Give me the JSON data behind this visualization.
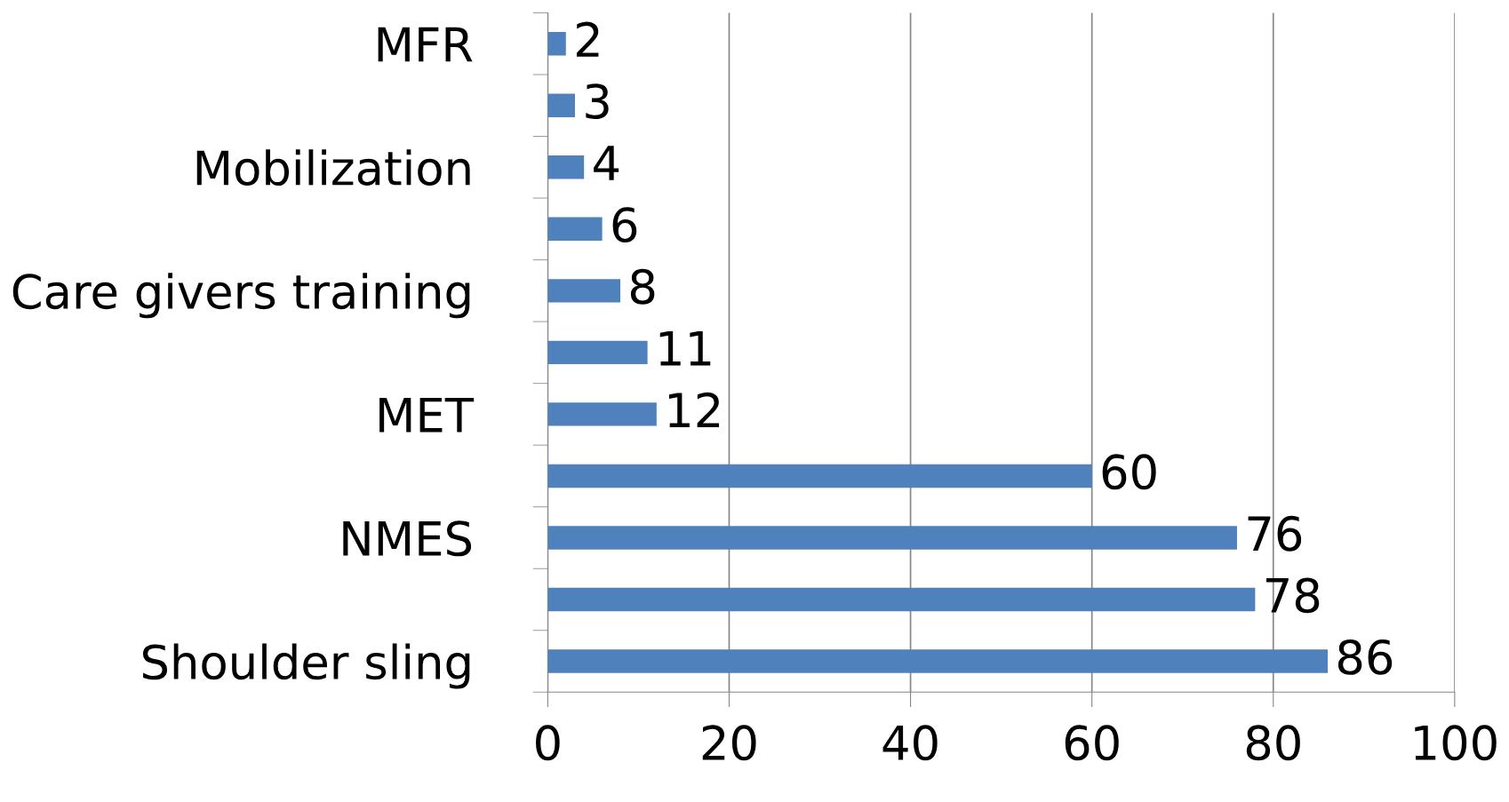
{
  "chart_data": {
    "type": "bar",
    "orientation": "horizontal",
    "categories": [
      "MFR",
      null,
      "Mobilization",
      null,
      "Care givers training",
      null,
      "MET",
      null,
      "NMES",
      null,
      "Shoulder sling"
    ],
    "values": [
      2,
      3,
      4,
      6,
      8,
      11,
      12,
      60,
      76,
      78,
      86
    ],
    "color": "#4f81bd",
    "xlim": [
      0,
      100
    ],
    "xticks": [
      0,
      20,
      40,
      60,
      80,
      100
    ],
    "grid": "x",
    "data_labels": true
  }
}
